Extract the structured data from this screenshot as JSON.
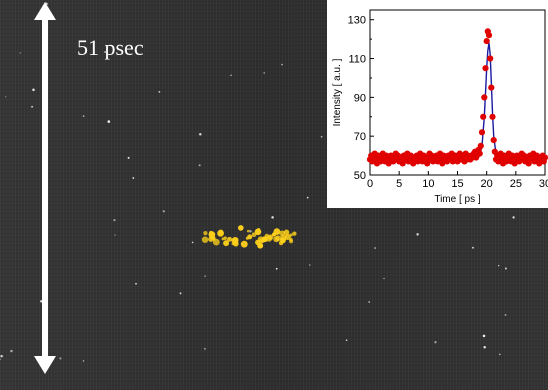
{
  "time_window_label": "51 psec",
  "signal_color": "#ffd21a",
  "arrow_color": "#ffffff",
  "chart_data": {
    "type": "scatter",
    "xlabel": "Time  [ ps ]",
    "ylabel": "Intensity [ a.u. ]",
    "xlim": [
      0,
      30
    ],
    "ylim": [
      50,
      135
    ],
    "xticks": [
      "0",
      "5",
      "10",
      "15",
      "20",
      "25",
      "30"
    ],
    "yticks": [
      "50",
      "70",
      "90",
      "110",
      "130"
    ],
    "grid": false,
    "legend": "none",
    "marker_color": "#e00000",
    "fit_color": "#1a1aa0",
    "series": [
      {
        "kind": "points",
        "x": [
          0.0,
          0.2,
          0.4,
          0.6,
          0.8,
          1.0,
          1.2,
          1.4,
          1.6,
          1.8,
          2.0,
          2.2,
          2.4,
          2.6,
          2.8,
          3.0,
          3.2,
          3.4,
          3.6,
          3.8,
          4.0,
          4.2,
          4.4,
          4.6,
          4.8,
          5.0,
          5.2,
          5.4,
          5.6,
          5.8,
          6.0,
          6.2,
          6.4,
          6.6,
          6.8,
          7.0,
          7.2,
          7.4,
          7.6,
          7.8,
          8.0,
          8.2,
          8.4,
          8.6,
          8.8,
          9.0,
          9.2,
          9.4,
          9.6,
          9.8,
          10.0,
          10.2,
          10.4,
          10.6,
          10.8,
          11.0,
          11.2,
          11.4,
          11.6,
          11.8,
          12.0,
          12.2,
          12.4,
          12.6,
          12.8,
          13.0,
          13.2,
          13.4,
          13.6,
          13.8,
          14.0,
          14.2,
          14.4,
          14.6,
          14.8,
          15.0,
          15.2,
          15.4,
          15.6,
          15.8,
          16.0,
          16.2,
          16.4,
          16.6,
          16.8,
          17.0,
          17.2,
          17.4,
          17.6,
          17.8,
          18.0,
          18.2,
          18.4,
          18.6,
          18.8,
          19.0,
          19.2,
          19.4,
          19.6,
          19.8,
          20.0,
          20.2,
          20.4,
          20.6,
          20.8,
          21.0,
          21.2,
          21.4,
          21.6,
          21.8,
          22.0,
          22.2,
          22.4,
          22.6,
          22.8,
          23.0,
          23.2,
          23.4,
          23.6,
          23.8,
          24.0,
          24.2,
          24.4,
          24.6,
          24.8,
          25.0,
          25.2,
          25.4,
          25.6,
          25.8,
          26.0,
          26.2,
          26.4,
          26.6,
          26.8,
          27.0,
          27.2,
          27.4,
          27.6,
          27.8,
          28.0,
          28.2,
          28.4,
          28.6,
          28.8,
          29.0,
          29.2,
          29.4,
          29.6,
          29.8,
          30.0
        ],
        "y": [
          58,
          60,
          57,
          59,
          61,
          58,
          56,
          60,
          59,
          57,
          58,
          61,
          59,
          57,
          60,
          58,
          56,
          59,
          60,
          58,
          57,
          59,
          61,
          58,
          60,
          57,
          59,
          58,
          56,
          60,
          59,
          58,
          61,
          57,
          59,
          60,
          58,
          56,
          59,
          58,
          60,
          57,
          59,
          61,
          58,
          57,
          60,
          59,
          58,
          56,
          59,
          61,
          58,
          60,
          57,
          59,
          58,
          60,
          57,
          59,
          61,
          58,
          56,
          60,
          59,
          58,
          57,
          60,
          59,
          58,
          61,
          57,
          59,
          60,
          58,
          57,
          59,
          61,
          58,
          60,
          59,
          57,
          61,
          58,
          60,
          59,
          58,
          60,
          59,
          61,
          62,
          59,
          61,
          63,
          61,
          65,
          72,
          80,
          90,
          105,
          119,
          124,
          122,
          110,
          95,
          80,
          68,
          62,
          58,
          60,
          57,
          59,
          61,
          58,
          56,
          60,
          59,
          57,
          58,
          61,
          59,
          57,
          60,
          58,
          56,
          59,
          60,
          58,
          57,
          59,
          61,
          58,
          60,
          57,
          59,
          58,
          56,
          60,
          59,
          58,
          61,
          57,
          59,
          60,
          58,
          56,
          59,
          58,
          60,
          57,
          59
        ]
      },
      {
        "kind": "fit",
        "x": [
          18.0,
          18.4,
          18.8,
          19.2,
          19.6,
          19.8,
          20.0,
          20.2,
          20.4,
          20.6,
          20.8,
          21.0,
          21.2,
          21.6,
          22.0,
          22.4,
          23.0
        ],
        "y": [
          58,
          58.5,
          60,
          65,
          80,
          92,
          105,
          114,
          118,
          112,
          98,
          82,
          70,
          61,
          58.5,
          58,
          58
        ]
      }
    ]
  }
}
